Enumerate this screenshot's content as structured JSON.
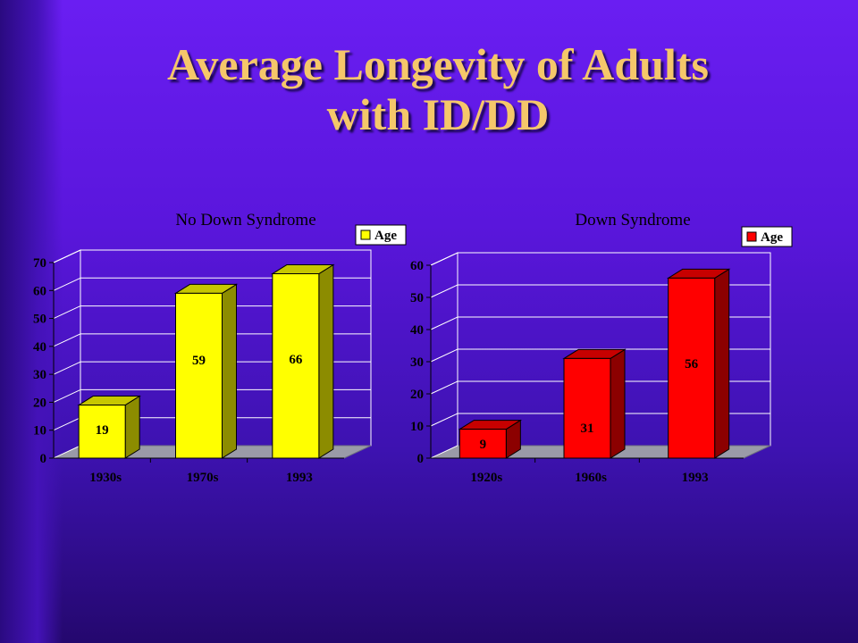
{
  "slide": {
    "title_line1": "Average Longevity of Adults",
    "title_line2": "with ID/DD"
  },
  "chart_data": [
    {
      "type": "bar",
      "title": "No Down Syndrome",
      "categories": [
        "1930s",
        "1970s",
        "1993"
      ],
      "series": [
        {
          "name": "Age",
          "values": [
            19,
            59,
            66
          ],
          "color": "#ffff00"
        }
      ],
      "ylim": [
        0,
        70
      ],
      "yticks": [
        0,
        10,
        20,
        30,
        40,
        50,
        60,
        70
      ],
      "legend_position": "top-right",
      "grid": true,
      "style": "3d"
    },
    {
      "type": "bar",
      "title": "Down Syndrome",
      "categories": [
        "1920s",
        "1960s",
        "1993"
      ],
      "series": [
        {
          "name": "Age",
          "values": [
            9,
            31,
            56
          ],
          "color": "#ff0000"
        }
      ],
      "ylim": [
        0,
        60
      ],
      "yticks": [
        0,
        10,
        20,
        30,
        40,
        50,
        60
      ],
      "legend_position": "top-right",
      "grid": true,
      "style": "3d"
    }
  ]
}
